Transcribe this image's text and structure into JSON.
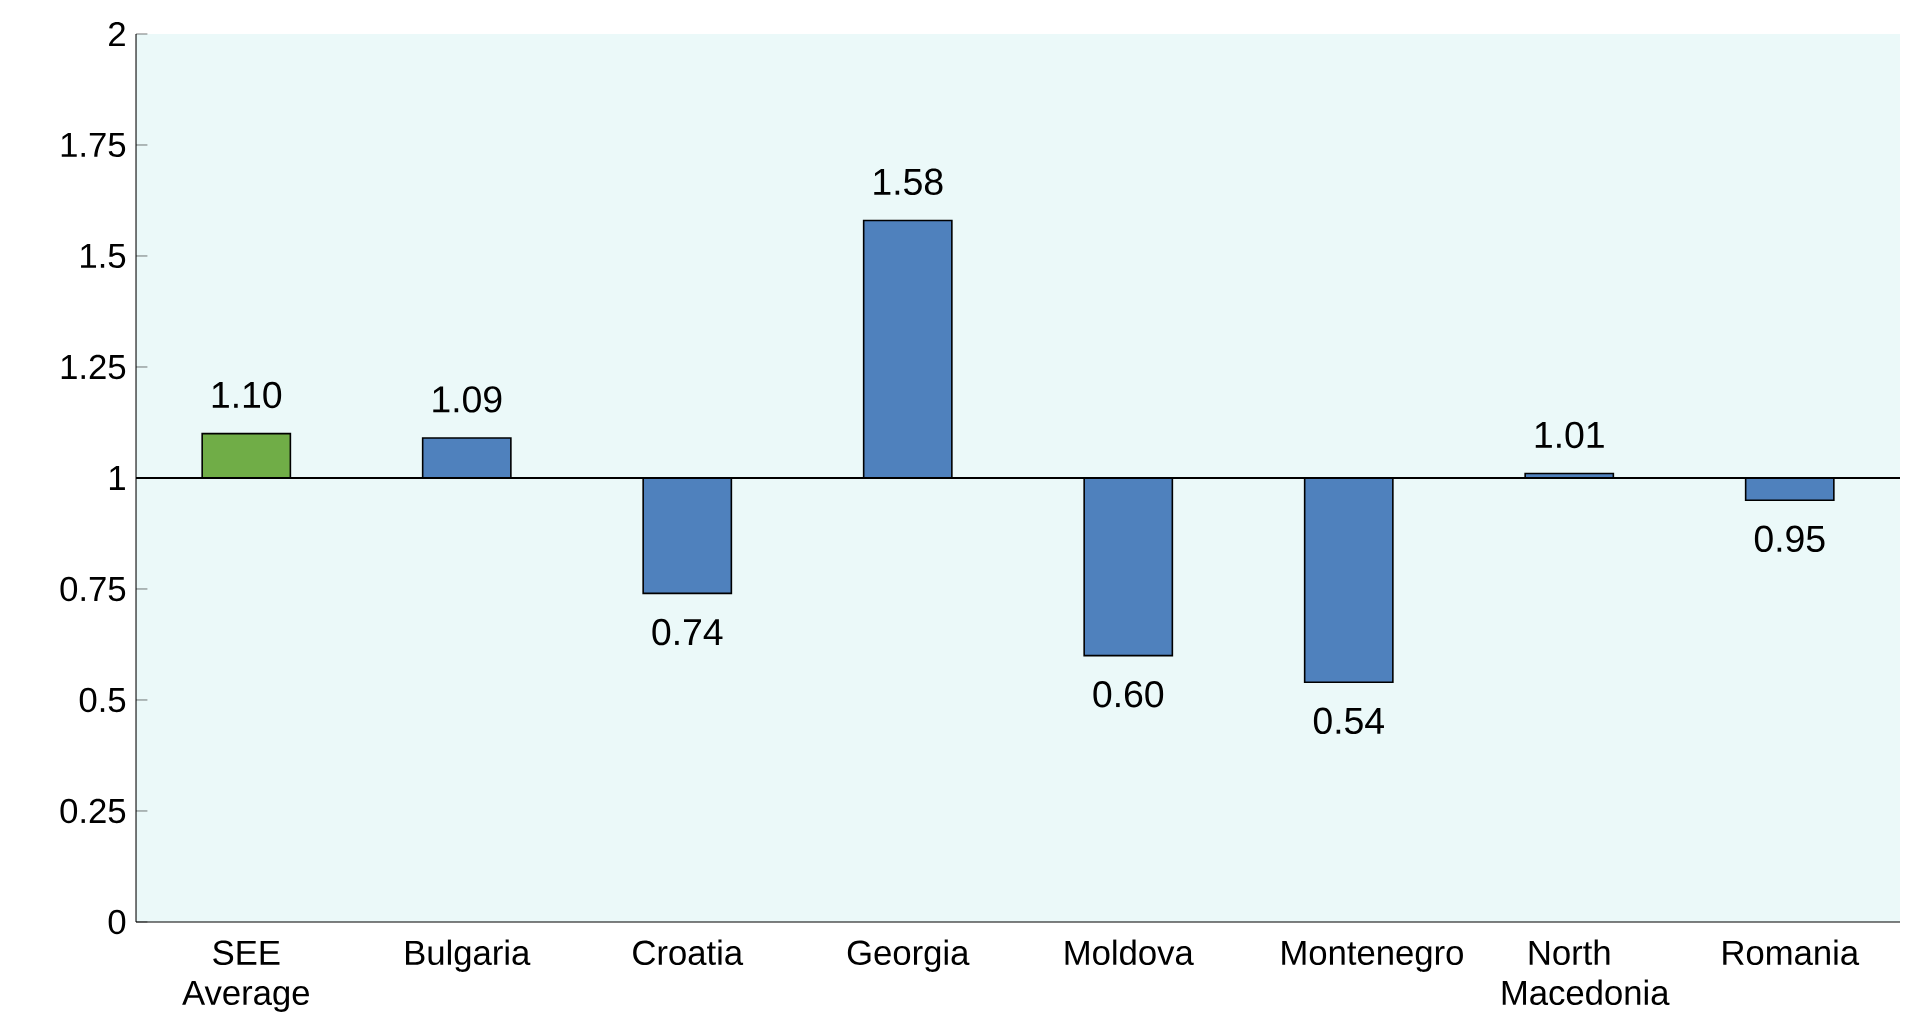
{
  "chart_data": {
    "type": "bar",
    "categories": [
      "SEE Average",
      "Bulgaria",
      "Croatia",
      "Georgia",
      "Moldova",
      "Montenegro",
      "North Macedonia",
      "Romania"
    ],
    "base": [
      1,
      1,
      1,
      1,
      1,
      1,
      1,
      1
    ],
    "values": [
      0.1,
      0.09,
      -0.26,
      0.58,
      -0.4,
      -0.46,
      0.01,
      -0.05
    ],
    "value_labels": [
      "1.10",
      "1.09",
      "0.74",
      "1.58",
      "0.60",
      "0.54",
      "1.01",
      "0.95"
    ],
    "colors": [
      "#70ad47",
      "#4f81bd",
      "#4f81bd",
      "#4f81bd",
      "#4f81bd",
      "#4f81bd",
      "#4f81bd",
      "#4f81bd"
    ],
    "ylim": [
      0,
      2
    ],
    "yticks": [
      0,
      0.25,
      0.5,
      0.75,
      1,
      1.25,
      1.5,
      1.75,
      2
    ],
    "ref_lines": [
      {
        "axis": "y",
        "value": 1,
        "color": "#000000"
      }
    ],
    "grid": false
  }
}
